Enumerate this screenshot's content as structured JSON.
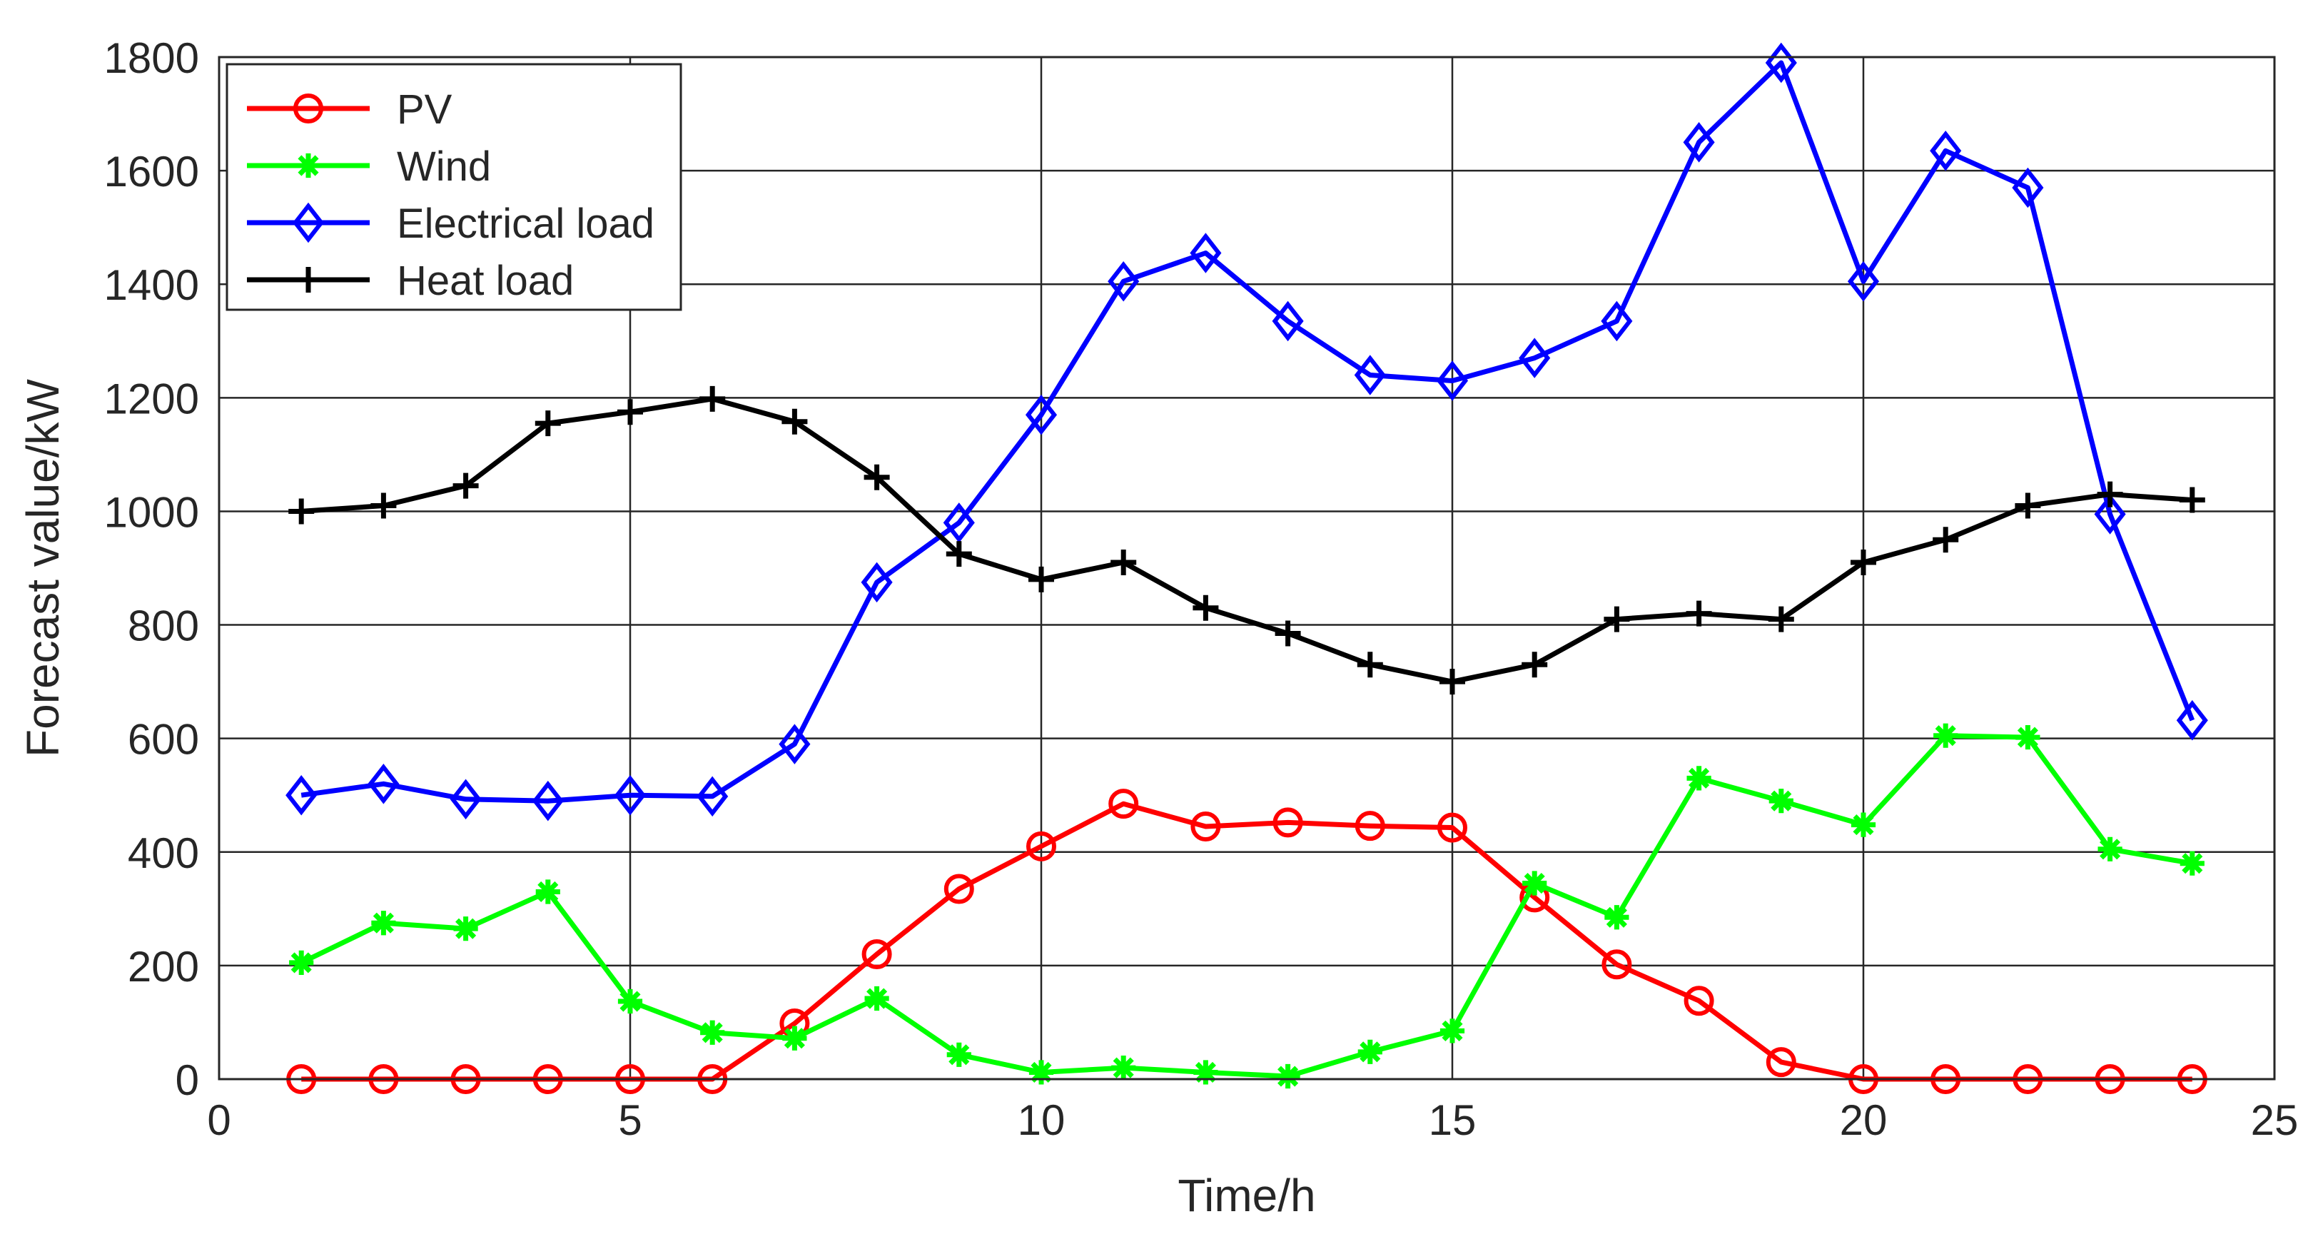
{
  "chart_data": {
    "type": "line",
    "title": "",
    "xlabel": "Time/h",
    "ylabel": "Forecast value/kW",
    "xlim": [
      0,
      25
    ],
    "ylim": [
      0,
      1800
    ],
    "xticks": [
      0,
      5,
      10,
      15,
      20,
      25
    ],
    "yticks": [
      0,
      200,
      400,
      600,
      800,
      1000,
      1200,
      1400,
      1600,
      1800
    ],
    "grid": true,
    "legend_position": "top-left",
    "x": [
      1,
      2,
      3,
      4,
      5,
      6,
      7,
      8,
      9,
      10,
      11,
      12,
      13,
      14,
      15,
      16,
      17,
      18,
      19,
      20,
      21,
      22,
      23,
      24
    ],
    "series": [
      {
        "name": "PV",
        "color": "#ff0000",
        "marker": "circle",
        "values": [
          0,
          0,
          0,
          0,
          0,
          0,
          98,
          220,
          335,
          410,
          485,
          445,
          452,
          446,
          443,
          320,
          202,
          138,
          30,
          0,
          0,
          0,
          0,
          0
        ]
      },
      {
        "name": "Wind",
        "color": "#00ff00",
        "marker": "star",
        "values": [
          205,
          275,
          265,
          330,
          137,
          82,
          72,
          142,
          43,
          12,
          20,
          12,
          5,
          48,
          85,
          345,
          285,
          530,
          490,
          448,
          605,
          602,
          405,
          380
        ]
      },
      {
        "name": "Electrical load",
        "color": "#0000ff",
        "marker": "diamond",
        "values": [
          500,
          520,
          493,
          490,
          500,
          498,
          590,
          875,
          980,
          1170,
          1405,
          1455,
          1335,
          1240,
          1230,
          1270,
          1335,
          1650,
          1790,
          1405,
          1635,
          1570,
          995,
          632
        ]
      },
      {
        "name": "Heat load",
        "color": "#000000",
        "marker": "plus",
        "values": [
          1000,
          1010,
          1045,
          1155,
          1175,
          1198,
          1158,
          1060,
          925,
          880,
          910,
          830,
          785,
          730,
          700,
          730,
          810,
          820,
          810,
          910,
          950,
          1010,
          1030,
          1020
        ]
      }
    ]
  }
}
